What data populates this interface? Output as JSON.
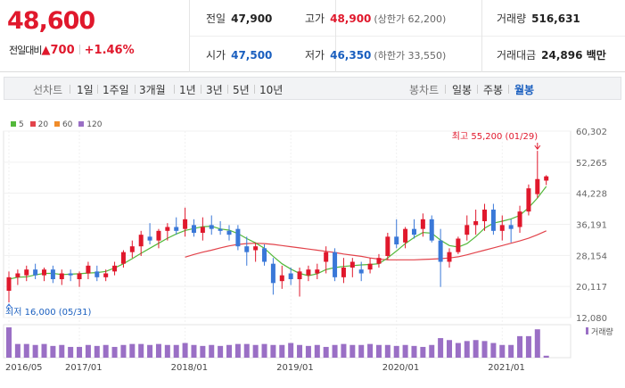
{
  "quote": {
    "price": "48,600",
    "change_label": "전일대비",
    "change_arrow": "▲",
    "change_amount": "700",
    "change_pct": "+1.46%",
    "prev_close": {
      "label": "전일",
      "value": "47,900"
    },
    "high": {
      "label": "고가",
      "value": "48,900",
      "sub": "(상한가 62,200)"
    },
    "volume": {
      "label": "거래량",
      "value": "516,631"
    },
    "open": {
      "label": "시가",
      "value": "47,500"
    },
    "low": {
      "label": "저가",
      "value": "46,350",
      "sub": "(하한가 33,550)"
    },
    "amount": {
      "label": "거래대금",
      "value": "24,896 백만"
    }
  },
  "toolbar": {
    "line_label": "선차트",
    "line_periods": [
      "1일",
      "1주일",
      "3개월",
      "1년",
      "3년",
      "5년",
      "10년"
    ],
    "candle_label": "봉차트",
    "candle_periods": [
      "일봉",
      "주봉",
      "월봉"
    ],
    "candle_active": "월봉"
  },
  "legend": [
    {
      "name": "5",
      "color": "#53b83a"
    },
    {
      "name": "20",
      "color": "#e2434b"
    },
    {
      "name": "60",
      "color": "#f08c2a"
    },
    {
      "name": "120",
      "color": "#9a6fc5"
    }
  ],
  "chart_data": {
    "type": "candlestick",
    "y_ticks": [
      "60,302",
      "52,265",
      "44,228",
      "36,191",
      "28,154",
      "20,117",
      "12,080"
    ],
    "ylim": [
      12080,
      60302
    ],
    "x_ticks": [
      "2016/05",
      "2017/01",
      "2018/01",
      "2019/01",
      "2020/01",
      "2021/01"
    ],
    "x_tick_index": [
      0,
      8,
      20,
      32,
      44,
      56
    ],
    "max_annotation": "최고 55,200 (01/29)",
    "min_annotation": "최저 16,000 (05/31)",
    "volume_label": "거래량",
    "colors": {
      "up": "#e0182c",
      "down": "#3a78d8",
      "ma5": "#53b83a",
      "ma20": "#e2434b",
      "volume": "#9a6fc5"
    },
    "candles": [
      [
        19000,
        24000,
        16000,
        22500
      ],
      [
        22500,
        24500,
        20500,
        23500
      ],
      [
        23000,
        25500,
        21500,
        24500
      ],
      [
        24500,
        26000,
        22000,
        23000
      ],
      [
        23000,
        25000,
        21500,
        24500
      ],
      [
        24500,
        25500,
        21000,
        22000
      ],
      [
        22000,
        24500,
        20500,
        23500
      ],
      [
        23500,
        24500,
        21500,
        23000
      ],
      [
        22000,
        24000,
        20000,
        23500
      ],
      [
        23500,
        26500,
        22000,
        25500
      ],
      [
        24000,
        25500,
        21500,
        22500
      ],
      [
        22500,
        24500,
        21500,
        23500
      ],
      [
        24000,
        26500,
        23000,
        25500
      ],
      [
        26000,
        29500,
        25000,
        29000
      ],
      [
        29000,
        32000,
        27500,
        30500
      ],
      [
        30500,
        34500,
        28000,
        33500
      ],
      [
        33000,
        36500,
        31000,
        32000
      ],
      [
        32000,
        35000,
        30000,
        34500
      ],
      [
        34500,
        36500,
        32000,
        35500
      ],
      [
        35500,
        38000,
        33500,
        34500
      ],
      [
        35000,
        40500,
        33000,
        37500
      ],
      [
        36000,
        37500,
        33000,
        34000
      ],
      [
        34000,
        38000,
        32000,
        35500
      ],
      [
        36000,
        38500,
        33500,
        35000
      ],
      [
        35000,
        37000,
        33500,
        34500
      ],
      [
        34500,
        36000,
        32000,
        33500
      ],
      [
        35000,
        36000,
        29500,
        30500
      ],
      [
        30500,
        33000,
        25500,
        29000
      ],
      [
        29500,
        31500,
        26500,
        30500
      ],
      [
        30000,
        31000,
        25500,
        26500
      ],
      [
        26000,
        27500,
        18000,
        21000
      ],
      [
        21500,
        25500,
        19500,
        23000
      ],
      [
        23500,
        25000,
        20500,
        22000
      ],
      [
        22000,
        25000,
        17500,
        24000
      ],
      [
        23000,
        25500,
        21500,
        24500
      ],
      [
        23500,
        26000,
        22000,
        24500
      ],
      [
        26500,
        30500,
        23500,
        29000
      ],
      [
        29000,
        30000,
        21500,
        22500
      ],
      [
        22500,
        27500,
        21000,
        25000
      ],
      [
        25000,
        27500,
        22500,
        26500
      ],
      [
        24500,
        26500,
        21500,
        23500
      ],
      [
        24500,
        27500,
        23500,
        26000
      ],
      [
        26000,
        28500,
        25000,
        27500
      ],
      [
        28000,
        34000,
        27000,
        33000
      ],
      [
        33000,
        37500,
        30000,
        31000
      ],
      [
        31500,
        35500,
        30000,
        35000
      ],
      [
        35000,
        37500,
        32500,
        33500
      ],
      [
        35000,
        39000,
        33000,
        37500
      ],
      [
        37500,
        38500,
        31500,
        32000
      ],
      [
        32000,
        35000,
        20000,
        26500
      ],
      [
        26500,
        30000,
        25000,
        29000
      ],
      [
        29000,
        33000,
        28500,
        32500
      ],
      [
        33500,
        38500,
        32000,
        36000
      ],
      [
        36000,
        40000,
        33500,
        37000
      ],
      [
        37000,
        41500,
        34500,
        40000
      ],
      [
        40000,
        41500,
        33500,
        34500
      ],
      [
        34500,
        38500,
        32000,
        36000
      ],
      [
        36000,
        37500,
        31500,
        35000
      ],
      [
        35500,
        41000,
        34000,
        39500
      ],
      [
        39500,
        46500,
        38500,
        45500
      ],
      [
        44000,
        55200,
        43000,
        47900
      ],
      [
        47500,
        48900,
        46350,
        48600
      ]
    ],
    "ma5": [
      22000,
      22500,
      22600,
      23100,
      23500,
      23500,
      23200,
      23300,
      23400,
      23600,
      23700,
      24000,
      24900,
      26000,
      27300,
      28700,
      30000,
      31300,
      32600,
      33700,
      34600,
      35100,
      35600,
      35700,
      35000,
      34700,
      33800,
      32500,
      31400,
      30000,
      27900,
      26000,
      24600,
      23500,
      22900,
      23400,
      24500,
      25000,
      25300,
      25500,
      25700,
      25800,
      26000,
      27500,
      29300,
      31200,
      32800,
      34100,
      33900,
      32100,
      30700,
      30300,
      31200,
      33000,
      35200,
      36500,
      37000,
      37600,
      38500,
      40500,
      43000,
      46000
    ],
    "ma20": [
      null,
      null,
      null,
      null,
      null,
      null,
      null,
      null,
      null,
      null,
      null,
      null,
      null,
      null,
      null,
      null,
      null,
      null,
      null,
      null,
      27700,
      28400,
      29000,
      29500,
      30100,
      30600,
      31000,
      31200,
      31300,
      31200,
      31000,
      30700,
      30400,
      30100,
      29800,
      29500,
      29200,
      28900,
      28500,
      28200,
      27900,
      27500,
      27200,
      27000,
      27000,
      27000,
      27000,
      27100,
      27200,
      27300,
      27500,
      27800,
      28300,
      28900,
      29500,
      30100,
      30700,
      31300,
      31900,
      32600,
      33500,
      34500
    ],
    "volume": [
      62,
      28,
      28,
      26,
      28,
      24,
      26,
      22,
      22,
      26,
      24,
      26,
      22,
      26,
      28,
      28,
      26,
      28,
      26,
      26,
      30,
      26,
      24,
      26,
      24,
      26,
      28,
      28,
      26,
      28,
      26,
      26,
      30,
      26,
      24,
      26,
      22,
      26,
      28,
      26,
      26,
      28,
      26,
      26,
      24,
      26,
      24,
      22,
      26,
      40,
      36,
      30,
      34,
      36,
      34,
      30,
      26,
      26,
      44,
      44,
      58,
      4
    ]
  }
}
